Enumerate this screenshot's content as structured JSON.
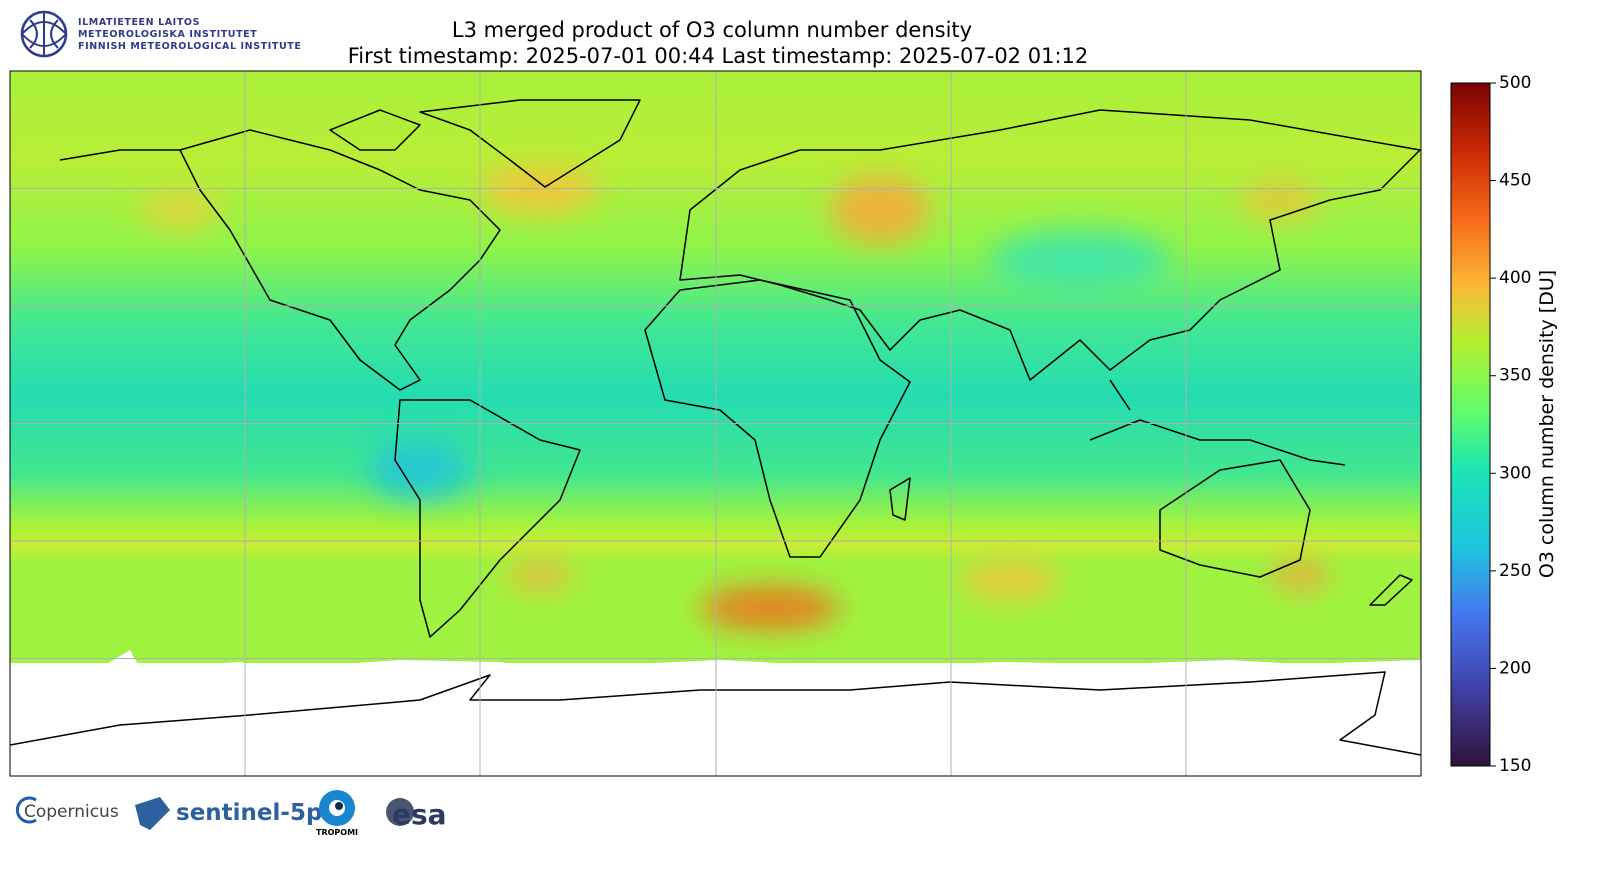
{
  "header": {
    "institute": [
      "ILMATIETEEN LAITOS",
      "METEOROLOGISKA INSTITUTET",
      "FINNISH METEOROLOGICAL INSTITUTE"
    ]
  },
  "map": {
    "title": [
      "L3 merged product of O3 column number density",
      "First timestamp: 2025-07-01 00:44   Last timestamp: 2025-07-02 01:12"
    ],
    "colorbar": {
      "label": "O3 column number density [DU]",
      "lim": [
        150,
        500
      ],
      "ticks": [
        150,
        200,
        250,
        300,
        350,
        400,
        450,
        500
      ]
    }
  },
  "footer": {
    "logos": [
      "Copernicus",
      "sentinel-5p",
      "TROPOMI",
      "esa"
    ]
  }
}
